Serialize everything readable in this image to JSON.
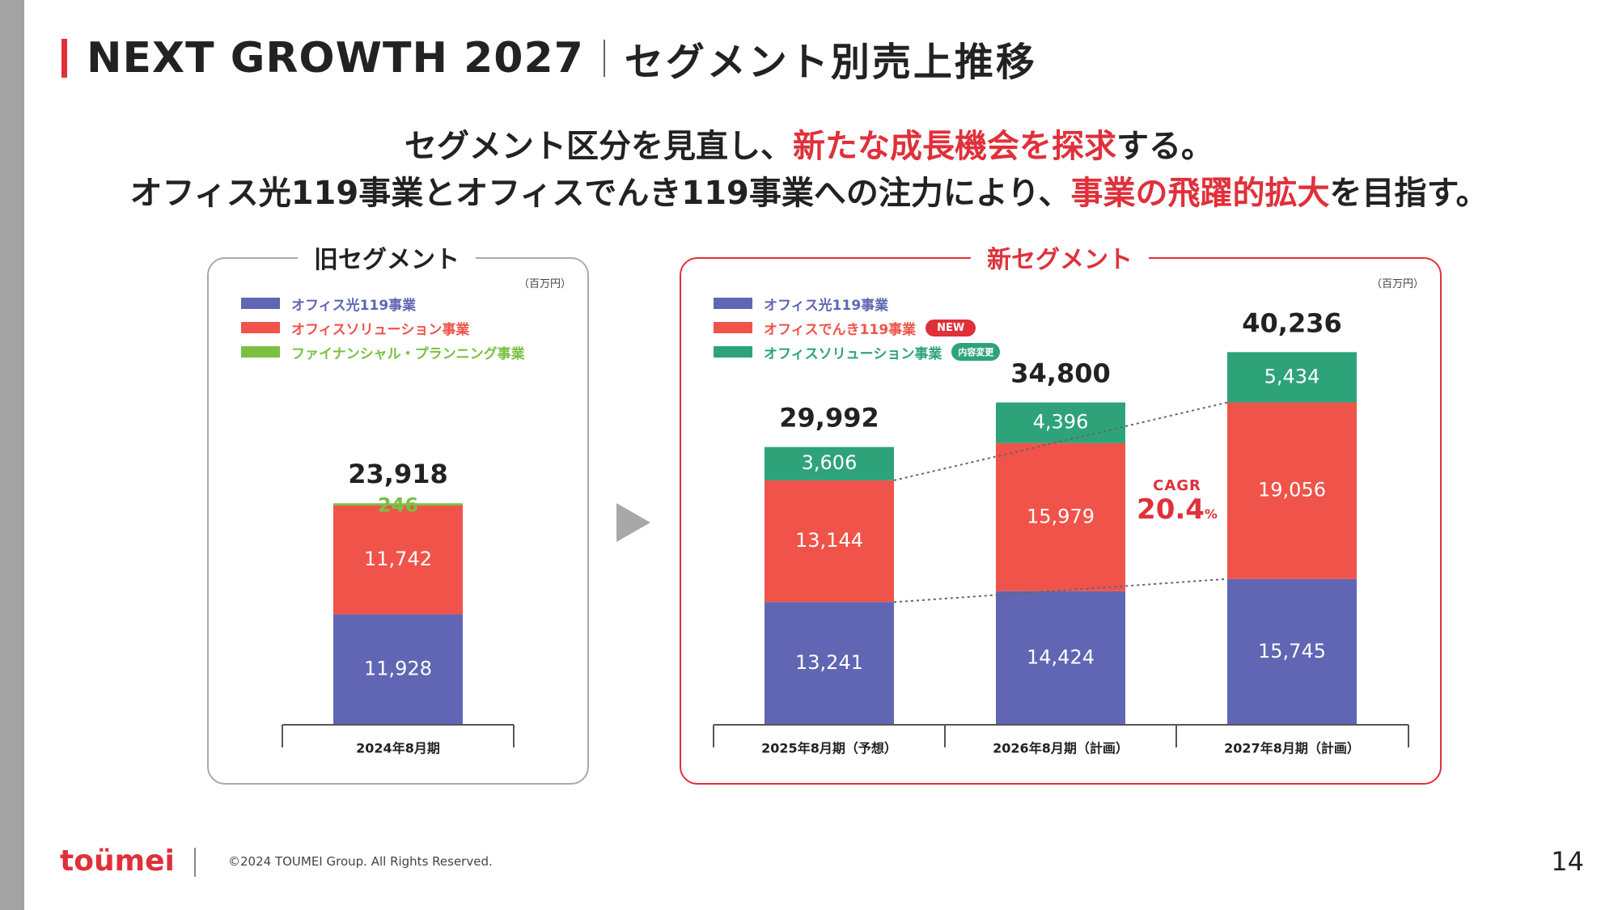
{
  "header": {
    "title_main": "NEXT GROWTH 2027",
    "title_sub": "セグメント別売上推移"
  },
  "lead": {
    "line1_a": "セグメント区分を見直し、",
    "line1_b": "新たな成長機会を探求",
    "line1_c": "する。",
    "line2_a": "オフィス光119事業とオフィスでんき119事業への注力により、",
    "line2_b": "事業の飛躍的拡大",
    "line2_c": "を目指す。"
  },
  "colors": {
    "accent": "#e0303a",
    "hikari": "#6066b3",
    "solution_old": "#f0534a",
    "finance": "#7bc043",
    "denki": "#f0534a",
    "solution_new": "#2ea37a"
  },
  "old_segment": {
    "title": "旧セグメント",
    "unit": "（百万円）",
    "legend": [
      "オフィス光119事業",
      "オフィスソリューション事業",
      "ファイナンシャル・プランニング事業"
    ]
  },
  "new_segment": {
    "title": "新セグメント",
    "unit": "（百万円）",
    "legend": [
      "オフィス光119事業",
      "オフィスでんき119事業",
      "オフィスソリューション事業"
    ],
    "badge_new": "NEW",
    "badge_changed": "内容変更"
  },
  "cagr": {
    "label": "CAGR",
    "value": "20.4",
    "unit": "%"
  },
  "chart_data": [
    {
      "type": "bar",
      "stacked": true,
      "title": "旧セグメント",
      "unit": "（百万円）",
      "categories": [
        "2024年8月期"
      ],
      "series": [
        {
          "name": "オフィス光119事業",
          "values": [
            11928
          ]
        },
        {
          "name": "オフィスソリューション事業",
          "values": [
            11742
          ]
        },
        {
          "name": "ファイナンシャル・プランニング事業",
          "values": [
            246
          ]
        }
      ],
      "totals": [
        23918
      ],
      "total_labels": [
        "23,918"
      ],
      "value_labels": [
        [
          "11,928"
        ],
        [
          "11,742"
        ],
        [
          "246"
        ]
      ]
    },
    {
      "type": "bar",
      "stacked": true,
      "title": "新セグメント",
      "unit": "（百万円）",
      "categories": [
        "2025年8月期（予想）",
        "2026年8月期（計画）",
        "2027年8月期（計画）"
      ],
      "series": [
        {
          "name": "オフィス光119事業",
          "values": [
            13241,
            14424,
            15745
          ]
        },
        {
          "name": "オフィスでんき119事業",
          "values": [
            13144,
            15979,
            19056
          ]
        },
        {
          "name": "オフィスソリューション事業",
          "values": [
            3606,
            4396,
            5434
          ]
        }
      ],
      "totals": [
        29992,
        34800,
        40236
      ],
      "total_labels": [
        "29,992",
        "34,800",
        "40,236"
      ],
      "value_labels": [
        [
          "13,241",
          "14,424",
          "15,745"
        ],
        [
          "13,144",
          "15,979",
          "19,056"
        ],
        [
          "3,606",
          "4,396",
          "5,434"
        ]
      ]
    }
  ],
  "footer": {
    "logo": "toümei",
    "copyright": "©2024 TOUMEI Group. All Rights Reserved.",
    "page": "14"
  }
}
